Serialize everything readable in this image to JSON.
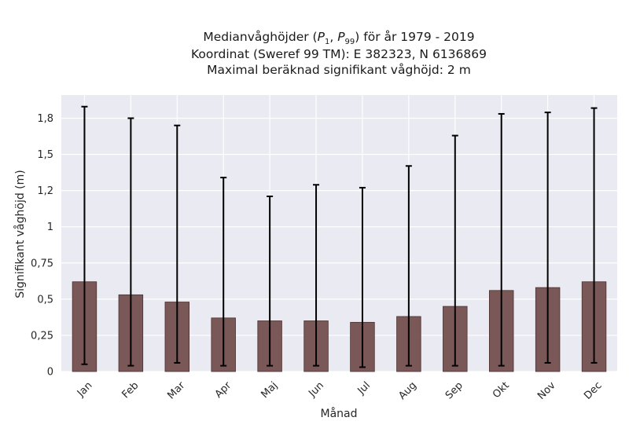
{
  "chart_data": {
    "type": "bar",
    "title_lines": [
      "Medianvåghöjder (P1, P99) för år 1979 - 2019",
      "Koordinat (Sweref 99 TM): E 382323, N 6136869",
      "Maximal beräknad signifikant våghöjd: 2 m"
    ],
    "xlabel": "Månad",
    "ylabel": "Signifikant våghöjd (m)",
    "categories": [
      "Jan",
      "Feb",
      "Mar",
      "Apr",
      "Maj",
      "Jun",
      "Jul",
      "Aug",
      "Sep",
      "Okt",
      "Nov",
      "Dec"
    ],
    "values": [
      0.62,
      0.53,
      0.48,
      0.37,
      0.35,
      0.35,
      0.34,
      0.38,
      0.45,
      0.56,
      0.58,
      0.62
    ],
    "p1": [
      0.05,
      0.04,
      0.06,
      0.04,
      0.04,
      0.04,
      0.03,
      0.04,
      0.04,
      0.04,
      0.06,
      0.06
    ],
    "p99": [
      1.83,
      1.75,
      1.7,
      1.34,
      1.21,
      1.29,
      1.27,
      1.42,
      1.63,
      1.78,
      1.79,
      1.82
    ],
    "yticks": [
      0,
      0.25,
      0.5,
      0.75,
      1,
      1.25,
      1.5,
      1.75
    ],
    "ytick_labels": [
      "0",
      "0,25",
      "0,5",
      "0,75",
      "1",
      "1,2",
      "1,5",
      "1,8"
    ],
    "ylim": [
      0,
      1.91
    ],
    "grid": true,
    "colors": {
      "bar": "#7b5858",
      "bar_edge": "#4a3030",
      "errorbar": "#000000",
      "background": "#eaeaf2",
      "grid": "#ffffff"
    }
  }
}
